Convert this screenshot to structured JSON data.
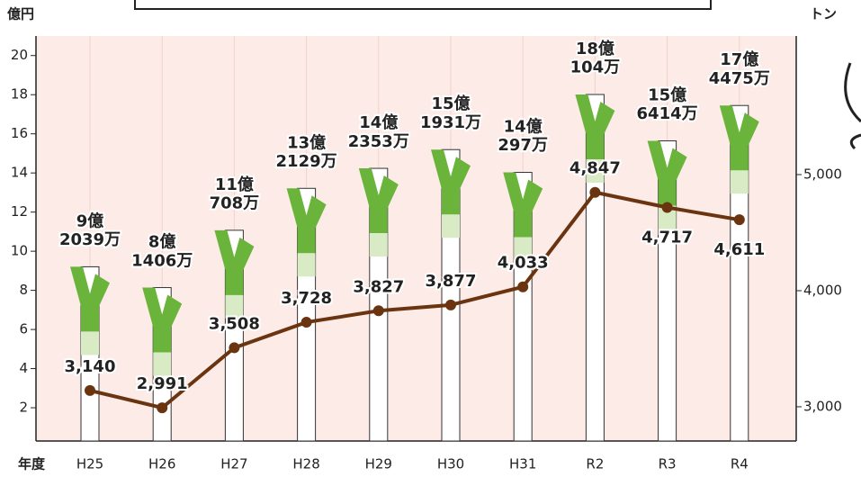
{
  "chart_data": {
    "type": "bar",
    "y_label": "億円",
    "y2_label": "トン",
    "x_label": "年度",
    "categories": [
      "H25",
      "H26",
      "H27",
      "H28",
      "H29",
      "H30",
      "H31",
      "R2",
      "R3",
      "R4"
    ],
    "series": [
      {
        "type": "bar",
        "color": "#6ab43c",
        "values": [
          9.2039,
          8.1406,
          11.0708,
          13.2129,
          14.2353,
          15.1931,
          14.0297,
          18.0104,
          15.6414,
          17.4475
        ],
        "value_labels": [
          "9億2039万",
          "8億1406万",
          "11億708万",
          "13億2129万",
          "14億2353万",
          "15億1931万",
          "14億297万",
          "18億104万",
          "15億6414万",
          "17億4475万"
        ]
      },
      {
        "type": "line",
        "axis": "y2",
        "color": "#6b3410",
        "values": [
          3140,
          2991,
          3508,
          3728,
          3827,
          3877,
          4033,
          4847,
          4717,
          4611
        ],
        "value_labels": [
          "3,140",
          "2,991",
          "3,508",
          "3,728",
          "3,827",
          "3,877",
          "4,033",
          "4,847",
          "4,717",
          "4,611"
        ]
      }
    ],
    "ylim": [
      0.3,
      21
    ],
    "yticks": [
      2,
      4,
      6,
      8,
      10,
      12,
      14,
      16,
      18,
      20
    ],
    "y2lim": [
      2705,
      6194
    ],
    "y2ticks": [
      {
        "value": 3000,
        "label": "3,000"
      },
      {
        "value": 4000,
        "label": "4,000"
      },
      {
        "value": 5000,
        "label": "5,000"
      }
    ],
    "background": "#fcebe6"
  }
}
